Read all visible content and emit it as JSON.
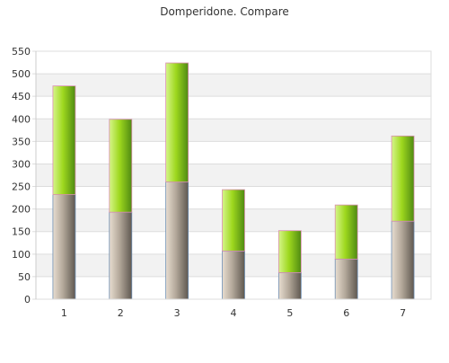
{
  "chart_data": {
    "type": "bar",
    "stacked": true,
    "title": "Domperidone. Compare",
    "xlabel": "",
    "ylabel": "",
    "categories": [
      "1",
      "2",
      "3",
      "4",
      "5",
      "6",
      "7"
    ],
    "series": [
      {
        "values": [
          232,
          193,
          260,
          107,
          59,
          89,
          173
        ],
        "color": "#b3a89a"
      },
      {
        "values": [
          241,
          206,
          264,
          136,
          93,
          120,
          189
        ],
        "color": "#9ed81e"
      }
    ],
    "ylim": [
      0,
      550
    ],
    "yticks": [
      "0",
      "50",
      "100",
      "150",
      "200",
      "250",
      "300",
      "350",
      "400",
      "450",
      "500",
      "550"
    ],
    "grid": true,
    "legend": "none",
    "colors": {
      "band": "#f2f2f2",
      "gridline": "#dddddd",
      "lower_outline": "#6f8fb3",
      "upper_outline": "#d98fb0"
    }
  }
}
